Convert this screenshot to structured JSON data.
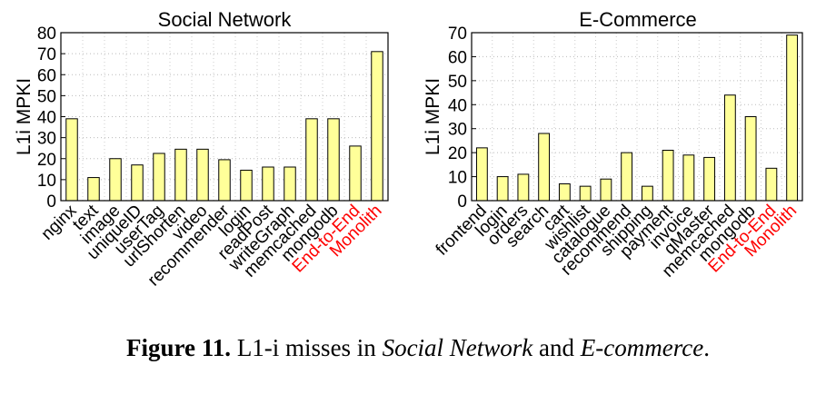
{
  "charts": [
    {
      "type": "bar",
      "title": "Social Network",
      "xlabel": "",
      "ylabel": "L1i MPKI",
      "ylim": [
        0,
        80
      ],
      "yticks": [
        0,
        10,
        20,
        30,
        40,
        50,
        60,
        70,
        80
      ],
      "grid": true,
      "bar_color": "#ffff99",
      "highlight_color": "#ff0000",
      "categories": [
        "nginx",
        "text",
        "image",
        "uniqueID",
        "userTag",
        "urlShorten",
        "video",
        "recommender",
        "login",
        "readPost",
        "writeGraph",
        "memcached",
        "mongodb",
        "End-to-End",
        "Monolith"
      ],
      "values": [
        39,
        11,
        20,
        17,
        22.5,
        24.5,
        24.5,
        19.5,
        14.5,
        16,
        16,
        39,
        39,
        26,
        71
      ],
      "highlight": [
        "End-to-End",
        "Monolith"
      ]
    },
    {
      "type": "bar",
      "title": "E-Commerce",
      "xlabel": "",
      "ylabel": "L1i MPKI",
      "ylim": [
        0,
        70
      ],
      "yticks": [
        0,
        10,
        20,
        30,
        40,
        50,
        60,
        70
      ],
      "grid": true,
      "bar_color": "#ffff99",
      "highlight_color": "#ff0000",
      "categories": [
        "frontend",
        "login",
        "orders",
        "search",
        "cart",
        "wishlist",
        "catalogue",
        "recommend",
        "shipping",
        "payment",
        "invoice",
        "qMaster",
        "memcached",
        "mongodb",
        "End-to-End",
        "Monolith"
      ],
      "values": [
        22,
        10,
        11,
        28,
        7,
        6,
        9,
        20,
        6,
        21,
        19,
        18,
        44,
        35,
        13.5,
        69
      ],
      "highlight": [
        "End-to-End",
        "Monolith"
      ]
    }
  ],
  "caption": {
    "label": "Figure 11.",
    "text_before": "L1-i misses in ",
    "em1": "Social Network",
    "text_middle": " and ",
    "em2": "E-commerce",
    "text_after": "."
  }
}
